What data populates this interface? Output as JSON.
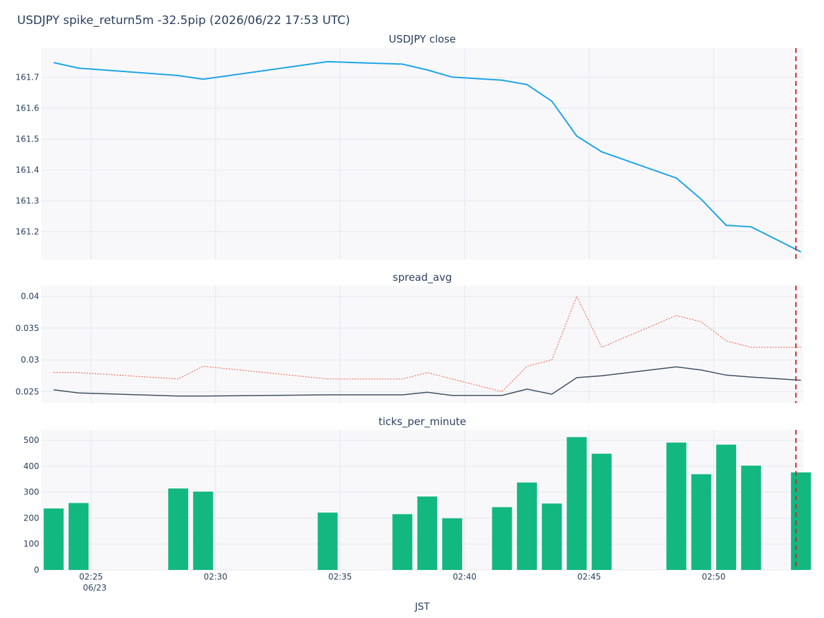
{
  "title": "USDJPY spike_return5m -32.5pip (2026/06/22 17:53 UTC)",
  "x_axis": {
    "title": "JST",
    "tick_labels": [
      "02:25",
      "02:30",
      "02:35",
      "02:40",
      "02:45",
      "02:50"
    ],
    "tick_minutes": [
      25,
      30,
      35,
      40,
      45,
      50
    ],
    "date_label": "06/23",
    "range_minutes": [
      23.0,
      53.6
    ]
  },
  "colors": {
    "close_line": "#1ba3e8",
    "spread_solid": "#3f4d63",
    "spread_dotted": "#ef553b",
    "bars": "#12b880",
    "marker": "#d62728",
    "plot_bg": "#f8f8fa",
    "grid": "#e4e7ee"
  },
  "marker_minute": 53.3,
  "chart_data": [
    {
      "type": "line",
      "title": "USDJPY close",
      "y_ticks": [
        "161.2",
        "161.3",
        "161.4",
        "161.5",
        "161.6",
        "161.7"
      ],
      "ylim": [
        161.11,
        161.795
      ],
      "x_minutes": [
        23.5,
        24.5,
        28.5,
        29.5,
        34.5,
        37.5,
        38.5,
        39.5,
        41.5,
        42.5,
        43.5,
        44.5,
        45.5,
        48.5,
        49.5,
        50.5,
        51.5,
        53.5
      ],
      "series": [
        {
          "values": [
            161.748,
            161.73,
            161.706,
            161.694,
            161.751,
            161.743,
            161.724,
            161.701,
            161.691,
            161.677,
            161.623,
            161.51,
            161.459,
            161.374,
            161.305,
            161.221,
            161.216,
            161.135
          ]
        }
      ]
    },
    {
      "type": "line",
      "title": "spread_avg",
      "y_ticks": [
        "0.025",
        "0.03",
        "0.035",
        "0.04"
      ],
      "ylim": [
        0.0232,
        0.0417
      ],
      "x_minutes": [
        23.5,
        24.5,
        28.5,
        29.5,
        34.5,
        37.5,
        38.5,
        39.5,
        41.5,
        42.5,
        43.5,
        44.5,
        45.5,
        48.5,
        49.5,
        50.5,
        51.5,
        53.5
      ],
      "series": [
        {
          "style": "solid",
          "values": [
            0.0253,
            0.0248,
            0.0243,
            0.0243,
            0.0245,
            0.0245,
            0.0249,
            0.0244,
            0.0244,
            0.0254,
            0.0246,
            0.0272,
            0.0275,
            0.0289,
            0.0284,
            0.0276,
            0.0273,
            0.0268
          ]
        },
        {
          "style": "dotted",
          "values": [
            0.028,
            0.028,
            0.027,
            0.029,
            0.027,
            0.027,
            0.028,
            0.027,
            0.025,
            0.029,
            0.03,
            0.04,
            0.032,
            0.037,
            0.036,
            0.033,
            0.032,
            0.032
          ]
        }
      ]
    },
    {
      "type": "bar",
      "title": "ticks_per_minute",
      "y_ticks": [
        "0",
        "100",
        "200",
        "300",
        "400",
        "500"
      ],
      "ylim": [
        0,
        540
      ],
      "x_minutes": [
        23.5,
        24.5,
        28.5,
        29.5,
        34.5,
        37.5,
        38.5,
        39.5,
        41.5,
        42.5,
        43.5,
        44.5,
        45.5,
        48.5,
        49.5,
        50.5,
        51.5,
        53.5
      ],
      "values": [
        237,
        258,
        314,
        302,
        221,
        215,
        283,
        199,
        242,
        337,
        256,
        512,
        448,
        491,
        369,
        483,
        402,
        376
      ]
    }
  ]
}
